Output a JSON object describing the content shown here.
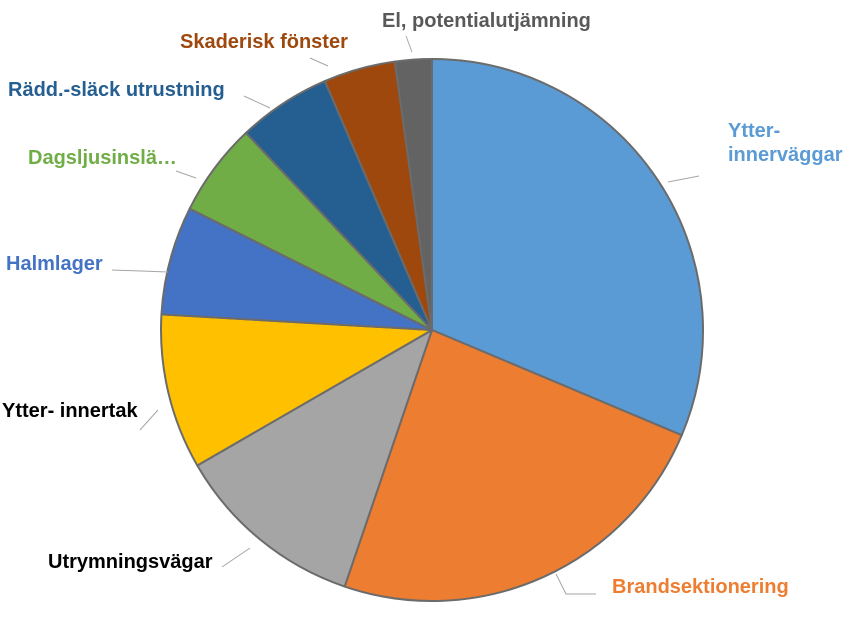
{
  "chart_data": {
    "type": "pie",
    "categories": [
      "Ytter- innerväggar",
      "Brandsektionering",
      "Utrymningsvägar",
      "Ytter- innertak",
      "Halmlager",
      "Dagsljusinslä…",
      "Rädd.-släck utrustning",
      "Skaderisk fönster",
      "El, potentialutjämning"
    ],
    "values": [
      31.5,
      24.0,
      11.5,
      9.3,
      6.5,
      5.6,
      5.6,
      4.3,
      2.2
    ],
    "colors": [
      "#5B9BD5",
      "#ED7D31",
      "#A5A5A5",
      "#FFC000",
      "#4472C4",
      "#70AD47",
      "#255E91",
      "#9E480E",
      "#636363"
    ],
    "label_colors": [
      "#5B9BD5",
      "#ED7D31",
      "#000000",
      "#000000",
      "#4472C4",
      "#70AD47",
      "#255E91",
      "#9E480E",
      "#595959"
    ],
    "labels": [
      [
        "Ytter-",
        "innerväggar"
      ],
      [
        "Brandsektionering"
      ],
      [
        "Utrymningsvägar"
      ],
      [
        "Ytter- innertak"
      ],
      [
        "Halmlager"
      ],
      [
        "Dagsljusinslä…"
      ],
      [
        "Rädd.-släck utrustning"
      ],
      [
        "Skaderisk fönster"
      ],
      [
        "El, potentialutjämning"
      ]
    ],
    "start_angle_deg": 0,
    "direction": "clockwise",
    "title": ""
  }
}
